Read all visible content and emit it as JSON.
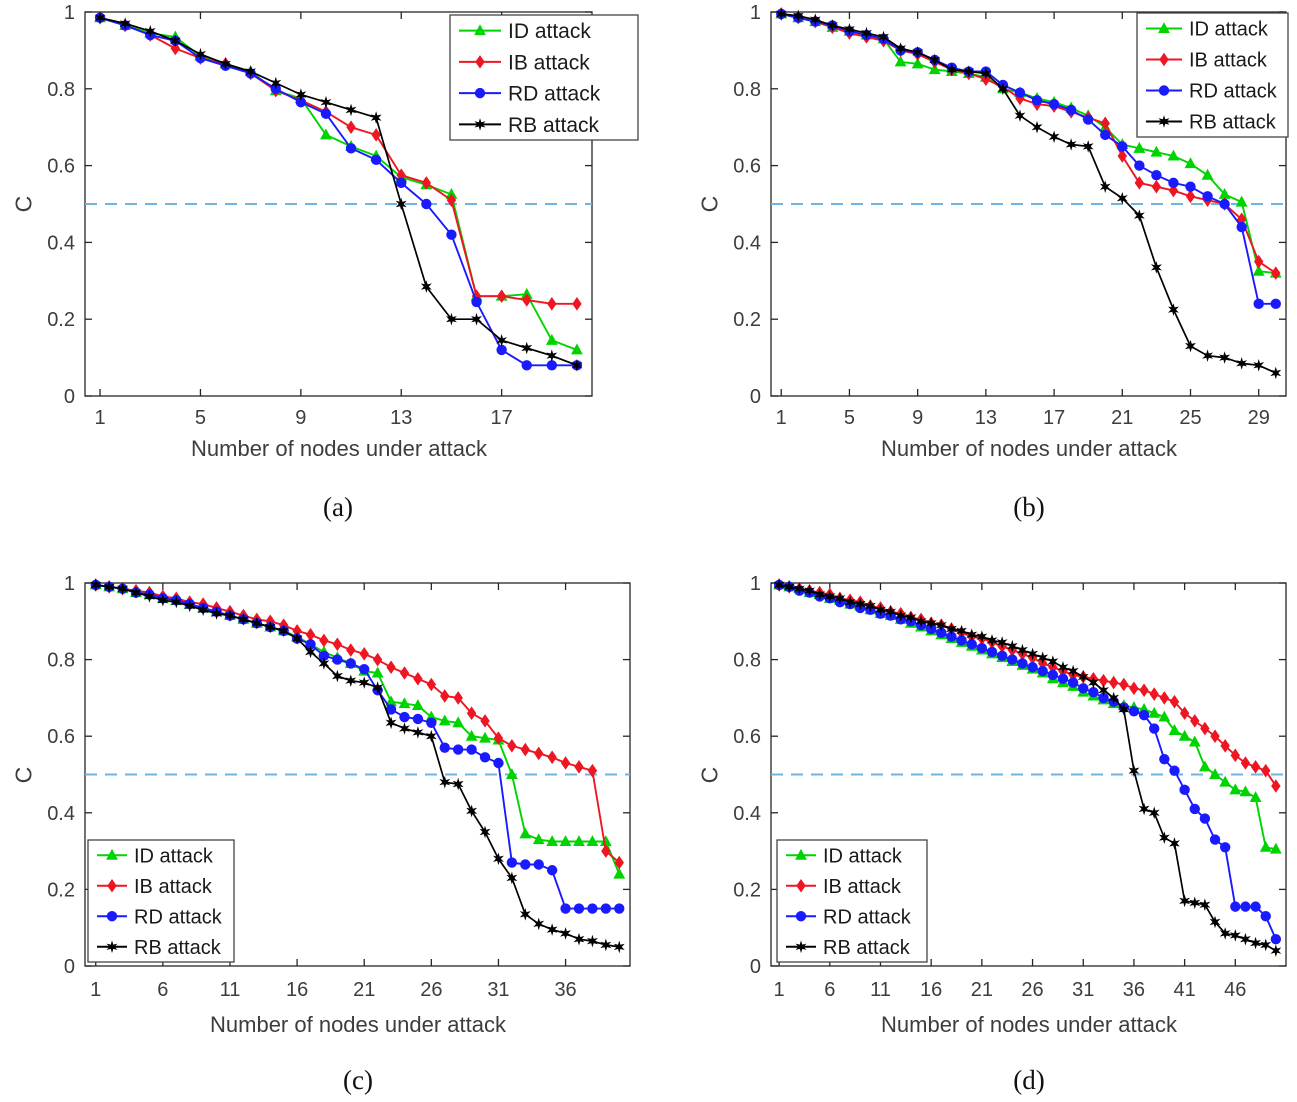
{
  "figure": {
    "xlabel": "Number of nodes under attack",
    "ylabel": "C",
    "legend_labels": [
      "ID attack",
      "IB attack",
      "RD attack",
      "RB attack"
    ],
    "colors": {
      "id_attack": "#00d400",
      "ib_attack": "#ee1622",
      "rd_attack": "#1a1aff",
      "rb_attack": "#000000",
      "threshold_line": "#6fb3e3",
      "axis": "#262626",
      "tick_label": "#3d3d3d"
    }
  },
  "chart_data": [
    {
      "type": "line",
      "caption": "(a)",
      "xlabel": "Number of nodes under attack",
      "ylabel": "C",
      "x_start": 1,
      "xlim": [
        0.4,
        20.6
      ],
      "ylim": [
        0,
        1
      ],
      "xticks": [
        1,
        5,
        9,
        13,
        17
      ],
      "yticks": [
        0,
        0.2,
        0.4,
        0.6,
        0.8,
        1
      ],
      "ytick_labels": [
        "0",
        "0.2",
        "0.4",
        "0.6",
        "0.8",
        "1"
      ],
      "ref_line_y": 0.5,
      "ref_line_color": "#6fb3e3",
      "legend_position": "top-right",
      "series": [
        {
          "name": "ID attack",
          "color": "#00d400",
          "marker": "triangle",
          "values": [
            0.985,
            0.965,
            0.945,
            0.935,
            0.885,
            0.865,
            0.845,
            0.795,
            0.775,
            0.68,
            0.65,
            0.625,
            0.57,
            0.55,
            0.525,
            0.26,
            0.26,
            0.265,
            0.145,
            0.12
          ]
        },
        {
          "name": "IB attack",
          "color": "#ee1622",
          "marker": "diamond",
          "values": [
            0.985,
            0.965,
            0.94,
            0.905,
            0.88,
            0.865,
            0.84,
            0.795,
            0.77,
            0.74,
            0.7,
            0.68,
            0.575,
            0.555,
            0.51,
            0.26,
            0.26,
            0.25,
            0.24,
            0.24
          ]
        },
        {
          "name": "RD attack",
          "color": "#1a1aff",
          "marker": "circle",
          "values": [
            0.985,
            0.965,
            0.94,
            0.925,
            0.88,
            0.86,
            0.84,
            0.8,
            0.765,
            0.735,
            0.645,
            0.615,
            0.555,
            0.5,
            0.42,
            0.245,
            0.12,
            0.08,
            0.08,
            0.08
          ]
        },
        {
          "name": "RB attack",
          "color": "#000000",
          "marker": "hexagram",
          "values": [
            0.985,
            0.97,
            0.95,
            0.925,
            0.89,
            0.865,
            0.845,
            0.815,
            0.785,
            0.765,
            0.745,
            0.725,
            0.5,
            0.285,
            0.2,
            0.2,
            0.145,
            0.125,
            0.105,
            0.08
          ]
        }
      ]
    },
    {
      "type": "line",
      "caption": "(b)",
      "xlabel": "Number of nodes under attack",
      "ylabel": "C",
      "x_start": 1,
      "xlim": [
        0.4,
        30.6
      ],
      "ylim": [
        0,
        1
      ],
      "xticks": [
        1,
        5,
        9,
        13,
        17,
        21,
        25,
        29
      ],
      "yticks": [
        0,
        0.2,
        0.4,
        0.6,
        0.8,
        1
      ],
      "ytick_labels": [
        "0",
        "0.2",
        "0.4",
        "0.6",
        "0.8",
        "1"
      ],
      "ref_line_y": 0.5,
      "ref_line_color": "#6fb3e3",
      "legend_position": "top-right",
      "series": [
        {
          "name": "ID attack",
          "color": "#00d400",
          "marker": "triangle",
          "values": [
            0.995,
            0.985,
            0.975,
            0.96,
            0.95,
            0.94,
            0.93,
            0.87,
            0.865,
            0.85,
            0.845,
            0.84,
            0.83,
            0.8,
            0.79,
            0.775,
            0.765,
            0.75,
            0.73,
            0.7,
            0.655,
            0.645,
            0.635,
            0.625,
            0.605,
            0.575,
            0.525,
            0.505,
            0.325,
            0.32
          ]
        },
        {
          "name": "IB attack",
          "color": "#ee1622",
          "marker": "diamond",
          "values": [
            0.995,
            0.985,
            0.975,
            0.96,
            0.945,
            0.935,
            0.925,
            0.9,
            0.89,
            0.87,
            0.85,
            0.84,
            0.825,
            0.805,
            0.775,
            0.76,
            0.755,
            0.74,
            0.725,
            0.71,
            0.625,
            0.555,
            0.545,
            0.535,
            0.52,
            0.51,
            0.5,
            0.46,
            0.35,
            0.32
          ]
        },
        {
          "name": "RD attack",
          "color": "#1a1aff",
          "marker": "circle",
          "values": [
            0.995,
            0.985,
            0.975,
            0.965,
            0.95,
            0.94,
            0.93,
            0.9,
            0.895,
            0.875,
            0.855,
            0.845,
            0.845,
            0.81,
            0.79,
            0.77,
            0.76,
            0.745,
            0.72,
            0.68,
            0.65,
            0.6,
            0.575,
            0.555,
            0.545,
            0.52,
            0.5,
            0.44,
            0.24,
            0.24
          ]
        },
        {
          "name": "RB attack",
          "color": "#000000",
          "marker": "hexagram",
          "values": [
            0.995,
            0.99,
            0.98,
            0.965,
            0.955,
            0.945,
            0.935,
            0.905,
            0.895,
            0.875,
            0.85,
            0.845,
            0.84,
            0.8,
            0.73,
            0.7,
            0.675,
            0.655,
            0.65,
            0.545,
            0.515,
            0.47,
            0.335,
            0.225,
            0.13,
            0.105,
            0.1,
            0.085,
            0.08,
            0.06
          ]
        }
      ]
    },
    {
      "type": "line",
      "caption": "(c)",
      "xlabel": "Number of nodes under attack",
      "ylabel": "C",
      "x_start": 1,
      "xlim": [
        0.2,
        40.8
      ],
      "ylim": [
        0,
        1
      ],
      "xticks": [
        1,
        6,
        11,
        16,
        21,
        26,
        31,
        36
      ],
      "yticks": [
        0,
        0.2,
        0.4,
        0.6,
        0.8,
        1
      ],
      "ytick_labels": [
        "0",
        "0.2",
        "0.4",
        "0.6",
        "0.8",
        "1"
      ],
      "ref_line_y": 0.5,
      "ref_line_color": "#6fb3e3",
      "legend_position": "bottom-left",
      "series": [
        {
          "name": "ID attack",
          "color": "#00d400",
          "marker": "triangle",
          "values": [
            0.995,
            0.99,
            0.985,
            0.975,
            0.97,
            0.96,
            0.955,
            0.945,
            0.935,
            0.925,
            0.915,
            0.905,
            0.895,
            0.885,
            0.875,
            0.86,
            0.84,
            0.82,
            0.805,
            0.79,
            0.77,
            0.765,
            0.69,
            0.685,
            0.68,
            0.65,
            0.64,
            0.635,
            0.6,
            0.595,
            0.59,
            0.5,
            0.345,
            0.33,
            0.325,
            0.325,
            0.325,
            0.325,
            0.325,
            0.24
          ]
        },
        {
          "name": "IB attack",
          "color": "#ee1622",
          "marker": "diamond",
          "values": [
            0.995,
            0.99,
            0.985,
            0.98,
            0.975,
            0.965,
            0.96,
            0.95,
            0.945,
            0.935,
            0.925,
            0.915,
            0.905,
            0.9,
            0.89,
            0.875,
            0.865,
            0.85,
            0.84,
            0.825,
            0.815,
            0.8,
            0.78,
            0.765,
            0.75,
            0.735,
            0.705,
            0.7,
            0.66,
            0.64,
            0.595,
            0.575,
            0.565,
            0.555,
            0.545,
            0.53,
            0.52,
            0.51,
            0.3,
            0.27
          ]
        },
        {
          "name": "RD attack",
          "color": "#1a1aff",
          "marker": "circle",
          "values": [
            0.995,
            0.99,
            0.985,
            0.975,
            0.97,
            0.96,
            0.955,
            0.945,
            0.935,
            0.925,
            0.915,
            0.905,
            0.895,
            0.885,
            0.875,
            0.855,
            0.84,
            0.81,
            0.8,
            0.79,
            0.775,
            0.72,
            0.67,
            0.65,
            0.645,
            0.635,
            0.57,
            0.565,
            0.565,
            0.545,
            0.53,
            0.27,
            0.265,
            0.265,
            0.25,
            0.15,
            0.15,
            0.15,
            0.15,
            0.15
          ]
        },
        {
          "name": "RB attack",
          "color": "#000000",
          "marker": "hexagram",
          "values": [
            0.995,
            0.99,
            0.985,
            0.975,
            0.965,
            0.955,
            0.95,
            0.94,
            0.93,
            0.92,
            0.915,
            0.905,
            0.895,
            0.885,
            0.875,
            0.855,
            0.82,
            0.79,
            0.757,
            0.745,
            0.74,
            0.727,
            0.635,
            0.62,
            0.61,
            0.6,
            0.48,
            0.475,
            0.405,
            0.35,
            0.28,
            0.23,
            0.135,
            0.11,
            0.095,
            0.085,
            0.07,
            0.065,
            0.055,
            0.05
          ]
        }
      ]
    },
    {
      "type": "line",
      "caption": "(d)",
      "xlabel": "Number of nodes under attack",
      "ylabel": "C",
      "x_start": 1,
      "xlim": [
        0.2,
        51.0
      ],
      "ylim": [
        0,
        1
      ],
      "xticks": [
        1,
        6,
        11,
        16,
        21,
        26,
        31,
        36,
        41,
        46
      ],
      "yticks": [
        0,
        0.2,
        0.4,
        0.6,
        0.8,
        1
      ],
      "ytick_labels": [
        "0",
        "0.2",
        "0.4",
        "0.6",
        "0.8",
        "1"
      ],
      "ref_line_y": 0.5,
      "ref_line_color": "#6fb3e3",
      "legend_position": "bottom-left",
      "series": [
        {
          "name": "ID attack",
          "color": "#00d400",
          "marker": "triangle",
          "values": [
            0.995,
            0.99,
            0.985,
            0.975,
            0.97,
            0.96,
            0.955,
            0.945,
            0.94,
            0.93,
            0.92,
            0.915,
            0.905,
            0.895,
            0.885,
            0.875,
            0.865,
            0.855,
            0.845,
            0.835,
            0.825,
            0.815,
            0.805,
            0.795,
            0.785,
            0.775,
            0.765,
            0.75,
            0.74,
            0.73,
            0.715,
            0.705,
            0.695,
            0.685,
            0.68,
            0.675,
            0.67,
            0.66,
            0.65,
            0.615,
            0.6,
            0.585,
            0.52,
            0.5,
            0.48,
            0.46,
            0.455,
            0.44,
            0.31,
            0.305
          ]
        },
        {
          "name": "IB attack",
          "color": "#ee1622",
          "marker": "diamond",
          "values": [
            0.995,
            0.99,
            0.985,
            0.98,
            0.975,
            0.97,
            0.96,
            0.955,
            0.95,
            0.94,
            0.935,
            0.925,
            0.92,
            0.91,
            0.905,
            0.895,
            0.89,
            0.88,
            0.87,
            0.86,
            0.855,
            0.845,
            0.835,
            0.825,
            0.815,
            0.805,
            0.79,
            0.78,
            0.77,
            0.76,
            0.755,
            0.75,
            0.745,
            0.74,
            0.735,
            0.725,
            0.72,
            0.71,
            0.7,
            0.69,
            0.66,
            0.64,
            0.62,
            0.6,
            0.575,
            0.55,
            0.53,
            0.52,
            0.51,
            0.47
          ]
        },
        {
          "name": "RD attack",
          "color": "#1a1aff",
          "marker": "circle",
          "values": [
            0.995,
            0.99,
            0.98,
            0.975,
            0.965,
            0.96,
            0.95,
            0.945,
            0.935,
            0.93,
            0.92,
            0.915,
            0.905,
            0.9,
            0.89,
            0.88,
            0.87,
            0.86,
            0.85,
            0.84,
            0.83,
            0.82,
            0.81,
            0.8,
            0.79,
            0.78,
            0.77,
            0.76,
            0.75,
            0.74,
            0.725,
            0.715,
            0.7,
            0.69,
            0.675,
            0.665,
            0.655,
            0.62,
            0.54,
            0.51,
            0.46,
            0.41,
            0.385,
            0.33,
            0.31,
            0.155,
            0.155,
            0.155,
            0.13,
            0.07
          ]
        },
        {
          "name": "RB attack",
          "color": "#000000",
          "marker": "hexagram",
          "values": [
            0.995,
            0.99,
            0.985,
            0.98,
            0.97,
            0.965,
            0.96,
            0.95,
            0.945,
            0.94,
            0.93,
            0.925,
            0.915,
            0.91,
            0.9,
            0.895,
            0.89,
            0.88,
            0.875,
            0.865,
            0.86,
            0.85,
            0.845,
            0.835,
            0.825,
            0.815,
            0.805,
            0.795,
            0.78,
            0.77,
            0.755,
            0.74,
            0.72,
            0.7,
            0.67,
            0.51,
            0.41,
            0.4,
            0.335,
            0.32,
            0.17,
            0.165,
            0.16,
            0.115,
            0.085,
            0.08,
            0.07,
            0.06,
            0.055,
            0.04
          ]
        }
      ]
    }
  ]
}
